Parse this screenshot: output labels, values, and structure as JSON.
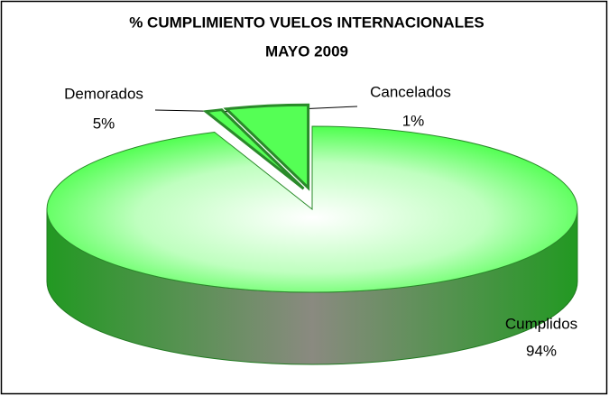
{
  "chart_data": {
    "type": "pie",
    "title": "% CUMPLIMIENTO  VUELOS INTERNACIONALES",
    "subtitle": "MAYO 2009",
    "categories": [
      "Demorados",
      "Cancelados",
      "Cumplidos"
    ],
    "values": [
      5,
      1,
      94
    ],
    "value_labels": [
      "5%",
      "1%",
      "94%"
    ],
    "colors": [
      "#55ff55",
      "#55ff55",
      "#44ff44"
    ]
  }
}
